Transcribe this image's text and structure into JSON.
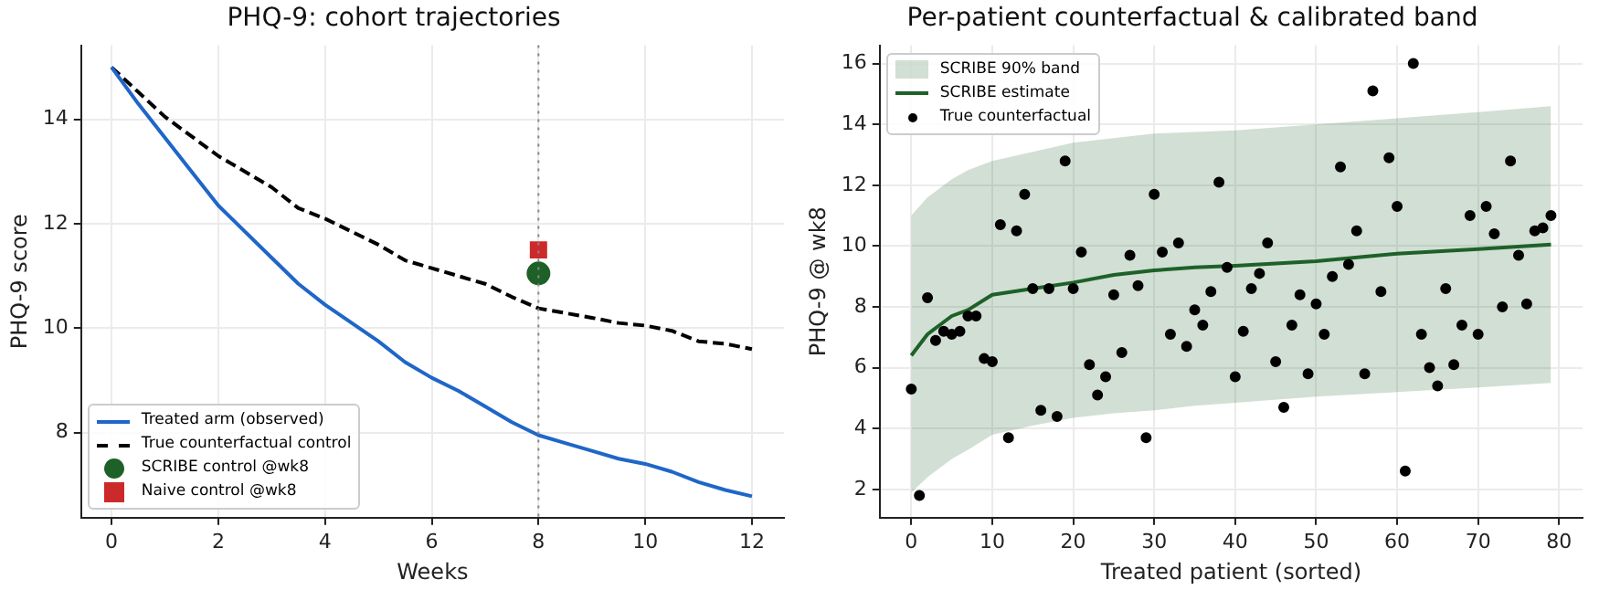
{
  "chart_data": [
    {
      "type": "line",
      "title": "PHQ-9: cohort trajectories",
      "xlabel": "Weeks",
      "ylabel": "PHQ-9 score",
      "xlim": [
        -0.57,
        12.6
      ],
      "ylim": [
        6.37,
        15.42
      ],
      "xticks": [
        0,
        2,
        4,
        6,
        8,
        10,
        12
      ],
      "yticks": [
        8,
        10,
        12,
        14
      ],
      "grid": true,
      "legend": "bottom left",
      "ref_lines": [
        {
          "axis": "x",
          "value": 8,
          "color": "#888888",
          "line_style": "dotted"
        }
      ],
      "series": [
        {
          "name": "Treated arm (observed)",
          "type": "line",
          "color": "#1f66c8",
          "marker": "none",
          "line_style": "solid",
          "x": [
            0,
            0.5,
            1,
            1.5,
            2,
            2.5,
            3,
            3.5,
            4,
            4.5,
            5,
            5.5,
            6,
            6.5,
            7,
            7.5,
            8,
            8.5,
            9,
            9.5,
            10,
            10.5,
            11,
            11.5,
            12
          ],
          "values": [
            15,
            14.3,
            13.65,
            13.0,
            12.35,
            11.85,
            11.35,
            10.85,
            10.45,
            10.1,
            9.75,
            9.35,
            9.05,
            8.8,
            8.5,
            8.2,
            7.95,
            7.8,
            7.65,
            7.5,
            7.4,
            7.25,
            7.05,
            6.9,
            6.78
          ]
        },
        {
          "name": "True counterfactual control",
          "type": "line",
          "color": "#000000",
          "marker": "none",
          "line_style": "dashed",
          "x": [
            0,
            1,
            2,
            3,
            3.5,
            4,
            5,
            5.5,
            6,
            7,
            7.5,
            8,
            9,
            9.5,
            10,
            10.5,
            11,
            11.5,
            12
          ],
          "values": [
            15,
            14.05,
            13.3,
            12.7,
            12.3,
            12.1,
            11.6,
            11.3,
            11.15,
            10.85,
            10.6,
            10.38,
            10.2,
            10.1,
            10.05,
            9.95,
            9.75,
            9.7,
            9.6
          ]
        },
        {
          "name": "SCRIBE control @wk8",
          "type": "scatter",
          "color": "#1e6128",
          "marker": "circle",
          "x": [
            8
          ],
          "values": [
            11.05
          ]
        },
        {
          "name": "Naive control @wk8",
          "type": "scatter",
          "color": "#cc2a2a",
          "marker": "square",
          "x": [
            8
          ],
          "values": [
            11.5
          ]
        }
      ]
    },
    {
      "type": "line",
      "title": "Per-patient counterfactual & calibrated band",
      "xlabel": "Treated patient (sorted)",
      "ylabel": "PHQ-9 @ wk8",
      "xlim": [
        -3.9,
        82.9
      ],
      "ylim": [
        1.07,
        16.6
      ],
      "annotations": [
        "SCRIBE 90% band"
      ],
      "xticks": [
        0,
        10,
        20,
        30,
        40,
        50,
        60,
        70,
        80
      ],
      "yticks": [
        2,
        4,
        6,
        8,
        10,
        12,
        14,
        16
      ],
      "grid": true,
      "legend": "top left",
      "series": [
        {
          "name": "SCRIBE estimate",
          "type": "line",
          "color": "#1e6128",
          "marker": "none",
          "line_style": "solid",
          "x": [
            0,
            2,
            5,
            7,
            10,
            15,
            20,
            25,
            30,
            35,
            40,
            50,
            60,
            70,
            79
          ],
          "values": [
            6.4,
            7.1,
            7.7,
            7.9,
            8.4,
            8.6,
            8.8,
            9.05,
            9.2,
            9.3,
            9.35,
            9.5,
            9.75,
            9.9,
            10.05
          ],
          "upper": [
            11.0,
            11.6,
            12.2,
            12.5,
            12.8,
            13.1,
            13.4,
            13.55,
            13.7,
            13.75,
            13.8,
            14.0,
            14.2,
            14.4,
            14.6
          ],
          "lower": [
            1.9,
            2.4,
            3.0,
            3.3,
            3.8,
            4.1,
            4.35,
            4.5,
            4.6,
            4.75,
            4.85,
            5.05,
            5.2,
            5.35,
            5.5
          ]
        },
        {
          "name": "True counterfactual",
          "type": "scatter",
          "color": "#000000",
          "marker": "circle",
          "x": [
            0,
            1,
            2,
            3,
            4,
            5,
            6,
            7,
            8,
            9,
            10,
            11,
            12,
            13,
            14,
            15,
            16,
            17,
            18,
            19,
            20,
            21,
            22,
            23,
            24,
            25,
            26,
            27,
            28,
            29,
            30,
            31,
            32,
            33,
            34,
            35,
            36,
            37,
            38,
            39,
            40,
            41,
            42,
            43,
            44,
            45,
            46,
            47,
            48,
            49,
            50,
            51,
            52,
            53,
            54,
            55,
            56,
            57,
            58,
            59,
            60,
            61,
            62,
            63,
            64,
            65,
            66,
            67,
            68,
            69,
            70,
            71,
            72,
            73,
            74,
            75,
            76,
            77,
            78,
            79
          ],
          "values": [
            5.3,
            1.8,
            8.3,
            6.9,
            7.2,
            7.1,
            7.2,
            7.7,
            7.7,
            6.3,
            6.2,
            10.7,
            3.7,
            10.5,
            11.7,
            8.6,
            4.6,
            8.6,
            4.4,
            12.8,
            8.6,
            9.8,
            6.1,
            5.1,
            5.7,
            8.4,
            6.5,
            9.7,
            8.7,
            3.7,
            11.7,
            9.8,
            7.1,
            10.1,
            6.7,
            7.9,
            7.4,
            8.5,
            12.1,
            9.3,
            5.7,
            7.2,
            8.6,
            9.1,
            10.1,
            6.2,
            4.7,
            7.4,
            8.4,
            5.8,
            8.1,
            7.1,
            9.0,
            12.6,
            9.4,
            10.5,
            5.8,
            15.1,
            8.5,
            12.9,
            11.3,
            2.6,
            16.0,
            7.1,
            6.0,
            5.4,
            8.6,
            6.1,
            7.4,
            11.0,
            7.1,
            11.3,
            10.4,
            8.0,
            12.8,
            9.7,
            8.1,
            10.5,
            10.6,
            11.0
          ]
        }
      ]
    }
  ]
}
